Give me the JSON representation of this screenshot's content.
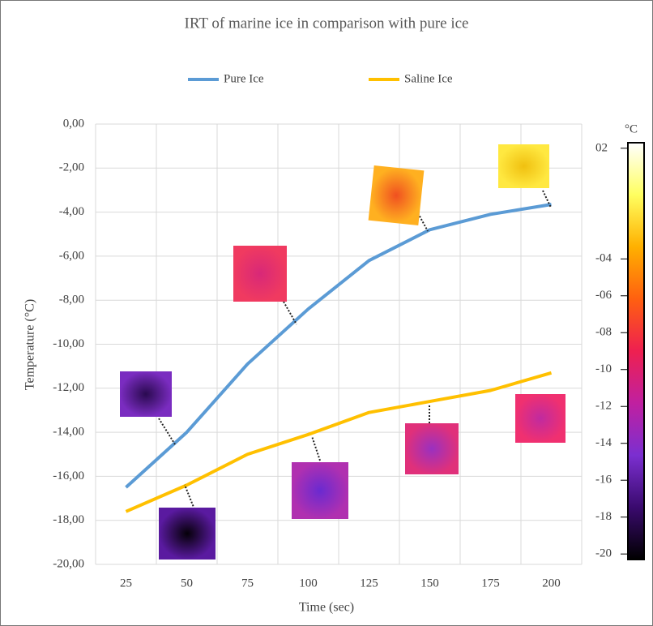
{
  "chart_data": {
    "type": "line",
    "title": "IRT of marine ice in comparison with pure ice",
    "x_label": "Time (sec)",
    "y_label": "Temperature (°C)",
    "categories": [
      "25",
      "50",
      "75",
      "100",
      "125",
      "150",
      "175",
      "200"
    ],
    "series": [
      {
        "name": "Pure Ice",
        "color": "#5b9bd5",
        "values": [
          -16.5,
          -14.0,
          -10.9,
          -8.4,
          -6.2,
          -4.8,
          -4.1,
          -3.65
        ]
      },
      {
        "name": "Saline Ice",
        "color": "#ffc000",
        "values": [
          -17.6,
          -16.4,
          -15.0,
          -14.1,
          -13.1,
          -12.6,
          -12.1,
          -11.3
        ]
      }
    ],
    "ylim": [
      -20,
      0
    ],
    "yticks": [
      {
        "value": 0,
        "label": "0,00"
      },
      {
        "value": -2,
        "label": "-2,00"
      },
      {
        "value": -4,
        "label": "-4,00"
      },
      {
        "value": -6,
        "label": "-6,00"
      },
      {
        "value": -8,
        "label": "-8,00"
      },
      {
        "value": -10,
        "label": "-10,00"
      },
      {
        "value": -12,
        "label": "-12,00"
      },
      {
        "value": -14,
        "label": "-14,00"
      },
      {
        "value": -16,
        "label": "-16,00"
      },
      {
        "value": -18,
        "label": "-18,00"
      },
      {
        "value": -20,
        "label": "-20,00"
      }
    ],
    "grid": true,
    "legend": "top",
    "colorbar": {
      "unit": "°C",
      "lim": [
        -20.3,
        2.3
      ],
      "colors": [
        "#000000",
        "#3a0a6e",
        "#7b2fd0",
        "#c020a0",
        "#ee2050",
        "#ff6010",
        "#ffb000",
        "#ffff60",
        "#ffffff"
      ],
      "ticks": [
        {
          "value": 2,
          "label": "02"
        },
        {
          "value": -4,
          "label": "-04"
        },
        {
          "value": -6,
          "label": "-06"
        },
        {
          "value": -8,
          "label": "-08"
        },
        {
          "value": -10,
          "label": "-10"
        },
        {
          "value": -12,
          "label": "-12"
        },
        {
          "value": -14,
          "label": "-14"
        },
        {
          "value": -16,
          "label": "-16"
        },
        {
          "value": -18,
          "label": "-18"
        },
        {
          "value": -20,
          "label": "-20"
        }
      ]
    }
  }
}
